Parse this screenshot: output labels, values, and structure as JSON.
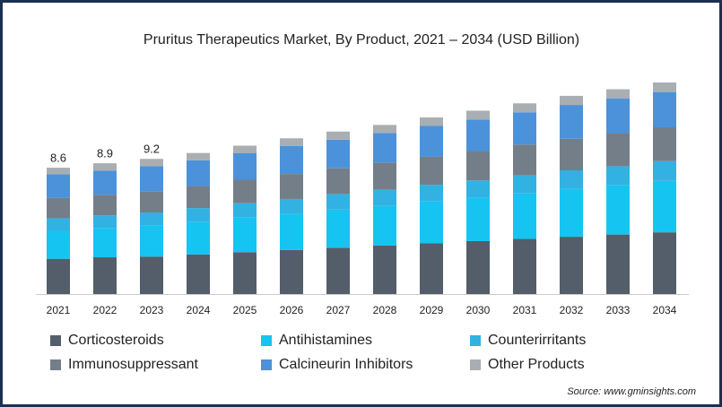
{
  "chart_data": {
    "type": "stacked_bar",
    "title": "Pruritus Therapeutics Market, By Product, 2021 – 2034 (USD Billion)",
    "categories": [
      "2021",
      "2022",
      "2023",
      "2024",
      "2025",
      "2026",
      "2027",
      "2028",
      "2029",
      "2030",
      "2031",
      "2032",
      "2033",
      "2034"
    ],
    "series": [
      {
        "name": "Corticosteroids",
        "color": "#535e6a",
        "values": [
          2.4,
          2.5,
          2.55,
          2.7,
          2.85,
          3.0,
          3.15,
          3.3,
          3.45,
          3.6,
          3.75,
          3.9,
          4.05,
          4.2
        ]
      },
      {
        "name": "Antihistamines",
        "color": "#16c4f2",
        "values": [
          1.9,
          2.0,
          2.1,
          2.2,
          2.35,
          2.45,
          2.6,
          2.7,
          2.85,
          2.95,
          3.1,
          3.25,
          3.35,
          3.5
        ]
      },
      {
        "name": "Counterirritants",
        "color": "#31b2e2",
        "values": [
          0.85,
          0.85,
          0.9,
          0.95,
          0.98,
          1.02,
          1.06,
          1.1,
          1.14,
          1.18,
          1.22,
          1.27,
          1.3,
          1.35
        ]
      },
      {
        "name": "Immunosuppressant",
        "color": "#747e89",
        "values": [
          1.4,
          1.4,
          1.45,
          1.5,
          1.6,
          1.7,
          1.75,
          1.85,
          1.9,
          2.0,
          2.1,
          2.15,
          2.25,
          2.3
        ]
      },
      {
        "name": "Calcineurin Inhibitors",
        "color": "#4b92da",
        "values": [
          1.6,
          1.65,
          1.7,
          1.75,
          1.8,
          1.9,
          1.95,
          2.0,
          2.1,
          2.15,
          2.2,
          2.3,
          2.35,
          2.4
        ]
      },
      {
        "name": "Other Products",
        "color": "#a9aeb3",
        "values": [
          0.45,
          0.5,
          0.5,
          0.5,
          0.52,
          0.53,
          0.55,
          0.56,
          0.58,
          0.6,
          0.61,
          0.62,
          0.64,
          0.65
        ]
      }
    ],
    "annotations": [
      {
        "category": "2021",
        "value": 8.6
      },
      {
        "category": "2022",
        "value": 8.9
      },
      {
        "category": "2023",
        "value": 9.2
      }
    ],
    "source": "Source: www.gminsights.com"
  }
}
